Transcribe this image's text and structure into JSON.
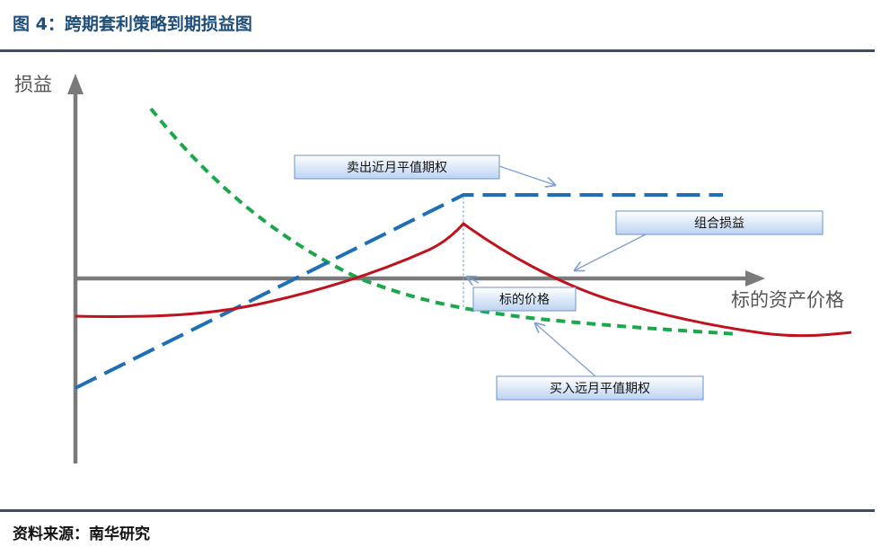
{
  "figure": {
    "title": "图 4：跨期套利策略到期损益图",
    "source": "资料来源：南华研究"
  },
  "axes": {
    "y_label": "损益",
    "x_label": "标的资产价格"
  },
  "callouts": {
    "sell_near": "卖出近月平值期权",
    "combo": "组合损益",
    "underlying": "标的价格",
    "buy_far": "买入远月平值期权"
  },
  "colors": {
    "header": "#1f4e79",
    "rule": "#3a4d66",
    "axis": "#7a7a7a",
    "sell_near_line": "#1f6fb6",
    "buy_far_line": "#1aa84a",
    "combo_line": "#c0121c",
    "callout_fill_top": "#ffffff",
    "callout_fill_bottom": "#bcd3f2",
    "callout_border": "#6e93c9"
  }
}
